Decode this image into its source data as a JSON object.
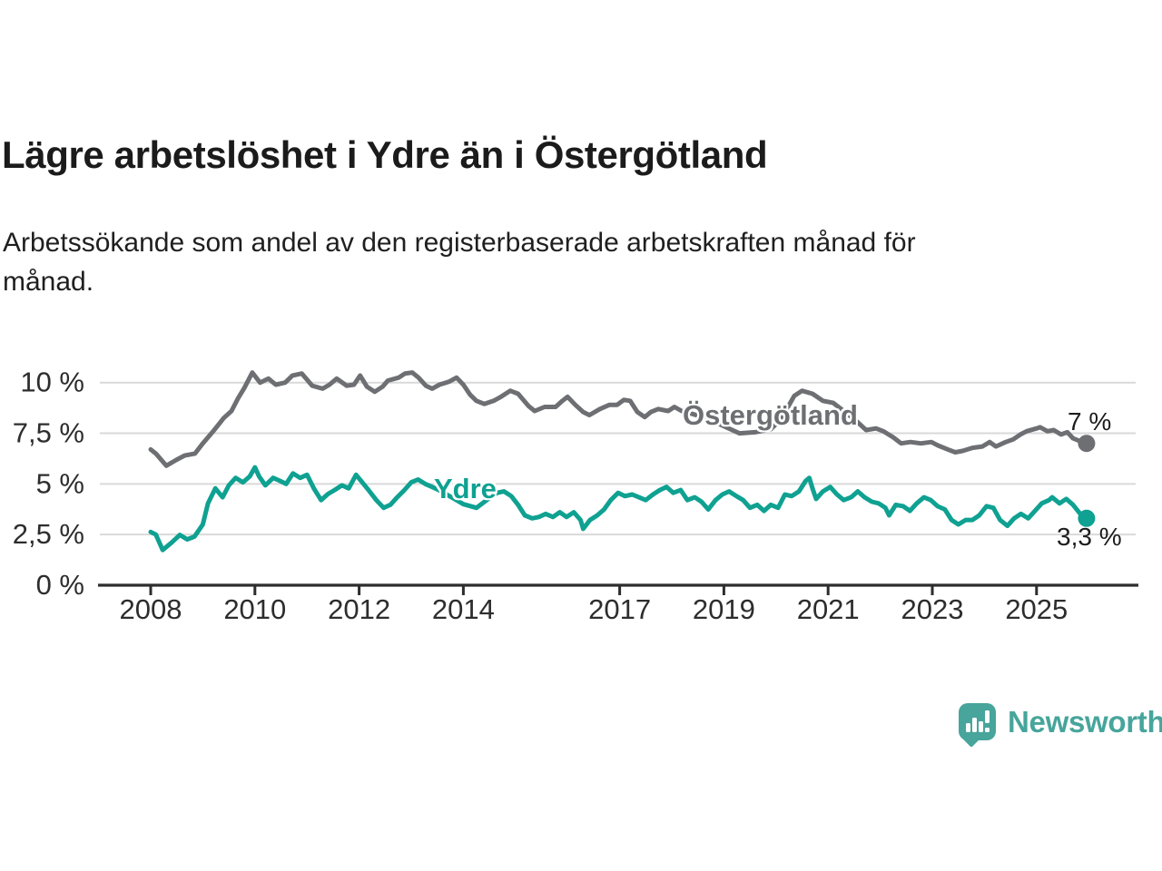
{
  "page": {
    "title": "Lägre arbetslöshet i Ydre än i Östergötland",
    "subtitle_line1": "Arbetssökande som andel av den registerbaserade arbetskraften månad för",
    "subtitle_line2": "månad."
  },
  "branding": {
    "name": "Newsworthy",
    "color": "#47a59b",
    "icon": "bar-chart-speech-bubble"
  },
  "chart_data": {
    "type": "line",
    "title": "Lägre arbetslöshet i Ydre än i Östergötland",
    "xlabel": "",
    "ylabel": "",
    "y_unit": "%",
    "grid": true,
    "xlim": [
      2007.85,
      2026.35
    ],
    "ylim": [
      0,
      11.2
    ],
    "x_ticks": [
      2008,
      2010,
      2012,
      2014,
      2017,
      2019,
      2021,
      2023,
      2025
    ],
    "y_ticks": [
      {
        "value": 10,
        "label": "10 %"
      },
      {
        "value": 7.5,
        "label": "7,5 %"
      },
      {
        "value": 5,
        "label": "5 %"
      },
      {
        "value": 2.5,
        "label": "2,5 %"
      },
      {
        "value": 0,
        "label": "0 %"
      }
    ],
    "colors": {
      "grid": "#d9d9d9",
      "axis": "#2d2d2d",
      "tick_text": "#2d2d2d"
    },
    "series": [
      {
        "name": "Östergötland",
        "color": "#6d6f73",
        "end_label": "7 %",
        "end_value": 7.0,
        "points": [
          [
            2008.0,
            6.7
          ],
          [
            2008.1,
            6.5
          ],
          [
            2008.3,
            5.9
          ],
          [
            2008.5,
            6.2
          ],
          [
            2008.65,
            6.4
          ],
          [
            2008.85,
            6.5
          ],
          [
            2009.0,
            7.0
          ],
          [
            2009.2,
            7.6
          ],
          [
            2009.4,
            8.25
          ],
          [
            2009.55,
            8.6
          ],
          [
            2009.67,
            9.2
          ],
          [
            2009.8,
            9.75
          ],
          [
            2009.95,
            10.5
          ],
          [
            2010.1,
            10.0
          ],
          [
            2010.26,
            10.2
          ],
          [
            2010.4,
            9.9
          ],
          [
            2010.58,
            10.0
          ],
          [
            2010.72,
            10.35
          ],
          [
            2010.9,
            10.45
          ],
          [
            2011.1,
            9.85
          ],
          [
            2011.3,
            9.7
          ],
          [
            2011.43,
            9.9
          ],
          [
            2011.57,
            10.2
          ],
          [
            2011.76,
            9.85
          ],
          [
            2011.9,
            9.9
          ],
          [
            2012.02,
            10.35
          ],
          [
            2012.15,
            9.8
          ],
          [
            2012.3,
            9.55
          ],
          [
            2012.45,
            9.8
          ],
          [
            2012.55,
            10.1
          ],
          [
            2012.76,
            10.25
          ],
          [
            2012.88,
            10.45
          ],
          [
            2013.02,
            10.5
          ],
          [
            2013.14,
            10.25
          ],
          [
            2013.28,
            9.85
          ],
          [
            2013.4,
            9.7
          ],
          [
            2013.54,
            9.9
          ],
          [
            2013.73,
            10.05
          ],
          [
            2013.87,
            10.25
          ],
          [
            2014.0,
            9.9
          ],
          [
            2014.13,
            9.4
          ],
          [
            2014.25,
            9.1
          ],
          [
            2014.4,
            8.95
          ],
          [
            2014.58,
            9.1
          ],
          [
            2014.72,
            9.3
          ],
          [
            2014.9,
            9.6
          ],
          [
            2015.05,
            9.45
          ],
          [
            2015.25,
            8.85
          ],
          [
            2015.37,
            8.6
          ],
          [
            2015.56,
            8.8
          ],
          [
            2015.77,
            8.8
          ],
          [
            2015.9,
            9.1
          ],
          [
            2016.0,
            9.3
          ],
          [
            2016.15,
            8.9
          ],
          [
            2016.3,
            8.55
          ],
          [
            2016.42,
            8.4
          ],
          [
            2016.62,
            8.7
          ],
          [
            2016.8,
            8.9
          ],
          [
            2016.95,
            8.9
          ],
          [
            2017.08,
            9.15
          ],
          [
            2017.2,
            9.1
          ],
          [
            2017.34,
            8.55
          ],
          [
            2017.48,
            8.3
          ],
          [
            2017.6,
            8.55
          ],
          [
            2017.74,
            8.7
          ],
          [
            2017.93,
            8.6
          ],
          [
            2018.05,
            8.8
          ],
          [
            2018.19,
            8.6
          ],
          [
            2018.4,
            8.45
          ],
          [
            2018.6,
            8.3
          ],
          [
            2018.8,
            8.1
          ],
          [
            2019.0,
            7.85
          ],
          [
            2019.3,
            7.5
          ],
          [
            2019.6,
            7.55
          ],
          [
            2019.9,
            7.7
          ],
          [
            2020.1,
            8.2
          ],
          [
            2020.35,
            9.35
          ],
          [
            2020.5,
            9.6
          ],
          [
            2020.7,
            9.45
          ],
          [
            2020.9,
            9.1
          ],
          [
            2021.1,
            9.0
          ],
          [
            2021.3,
            8.6
          ],
          [
            2021.5,
            8.2
          ],
          [
            2021.73,
            7.66
          ],
          [
            2021.92,
            7.74
          ],
          [
            2022.06,
            7.6
          ],
          [
            2022.25,
            7.3
          ],
          [
            2022.4,
            7.0
          ],
          [
            2022.58,
            7.07
          ],
          [
            2022.78,
            7.0
          ],
          [
            2022.98,
            7.07
          ],
          [
            2023.11,
            6.9
          ],
          [
            2023.3,
            6.7
          ],
          [
            2023.44,
            6.56
          ],
          [
            2023.58,
            6.63
          ],
          [
            2023.77,
            6.78
          ],
          [
            2023.96,
            6.85
          ],
          [
            2024.1,
            7.07
          ],
          [
            2024.22,
            6.85
          ],
          [
            2024.41,
            7.07
          ],
          [
            2024.55,
            7.2
          ],
          [
            2024.69,
            7.44
          ],
          [
            2024.81,
            7.6
          ],
          [
            2025.0,
            7.74
          ],
          [
            2025.07,
            7.8
          ],
          [
            2025.21,
            7.6
          ],
          [
            2025.33,
            7.66
          ],
          [
            2025.47,
            7.44
          ],
          [
            2025.59,
            7.55
          ],
          [
            2025.7,
            7.25
          ],
          [
            2025.8,
            7.15
          ],
          [
            2025.96,
            7.0
          ]
        ]
      },
      {
        "name": "Ydre",
        "color": "#0fa191",
        "end_label": "3,3 %",
        "end_value": 3.3,
        "points": [
          [
            2008.0,
            2.63
          ],
          [
            2008.1,
            2.5
          ],
          [
            2008.23,
            1.74
          ],
          [
            2008.4,
            2.1
          ],
          [
            2008.56,
            2.48
          ],
          [
            2008.7,
            2.26
          ],
          [
            2008.84,
            2.4
          ],
          [
            2009.0,
            3.0
          ],
          [
            2009.1,
            4.04
          ],
          [
            2009.24,
            4.78
          ],
          [
            2009.38,
            4.34
          ],
          [
            2009.5,
            4.93
          ],
          [
            2009.63,
            5.3
          ],
          [
            2009.77,
            5.08
          ],
          [
            2009.9,
            5.37
          ],
          [
            2010.0,
            5.82
          ],
          [
            2010.08,
            5.37
          ],
          [
            2010.2,
            4.93
          ],
          [
            2010.35,
            5.3
          ],
          [
            2010.48,
            5.15
          ],
          [
            2010.6,
            5.0
          ],
          [
            2010.73,
            5.52
          ],
          [
            2010.87,
            5.3
          ],
          [
            2011.0,
            5.45
          ],
          [
            2011.13,
            4.78
          ],
          [
            2011.27,
            4.2
          ],
          [
            2011.4,
            4.5
          ],
          [
            2011.53,
            4.7
          ],
          [
            2011.67,
            4.93
          ],
          [
            2011.8,
            4.78
          ],
          [
            2011.94,
            5.45
          ],
          [
            2012.06,
            5.08
          ],
          [
            2012.2,
            4.63
          ],
          [
            2012.33,
            4.2
          ],
          [
            2012.47,
            3.82
          ],
          [
            2012.6,
            3.97
          ],
          [
            2012.73,
            4.34
          ],
          [
            2012.87,
            4.7
          ],
          [
            2013.0,
            5.08
          ],
          [
            2013.13,
            5.22
          ],
          [
            2013.27,
            5.0
          ],
          [
            2013.4,
            4.85
          ],
          [
            2013.53,
            4.7
          ],
          [
            2013.8,
            4.3
          ],
          [
            2014.0,
            4.0
          ],
          [
            2014.25,
            3.82
          ],
          [
            2014.5,
            4.3
          ],
          [
            2014.65,
            4.56
          ],
          [
            2014.78,
            4.63
          ],
          [
            2014.92,
            4.4
          ],
          [
            2015.05,
            3.97
          ],
          [
            2015.18,
            3.45
          ],
          [
            2015.32,
            3.3
          ],
          [
            2015.45,
            3.37
          ],
          [
            2015.58,
            3.52
          ],
          [
            2015.72,
            3.37
          ],
          [
            2015.85,
            3.6
          ],
          [
            2015.98,
            3.37
          ],
          [
            2016.12,
            3.6
          ],
          [
            2016.25,
            3.22
          ],
          [
            2016.3,
            2.78
          ],
          [
            2016.43,
            3.22
          ],
          [
            2016.57,
            3.45
          ],
          [
            2016.7,
            3.74
          ],
          [
            2016.83,
            4.2
          ],
          [
            2016.97,
            4.56
          ],
          [
            2017.1,
            4.4
          ],
          [
            2017.24,
            4.48
          ],
          [
            2017.37,
            4.34
          ],
          [
            2017.5,
            4.2
          ],
          [
            2017.64,
            4.48
          ],
          [
            2017.77,
            4.7
          ],
          [
            2017.9,
            4.85
          ],
          [
            2018.03,
            4.56
          ],
          [
            2018.17,
            4.7
          ],
          [
            2018.3,
            4.2
          ],
          [
            2018.44,
            4.34
          ],
          [
            2018.57,
            4.12
          ],
          [
            2018.7,
            3.74
          ],
          [
            2018.84,
            4.2
          ],
          [
            2018.97,
            4.48
          ],
          [
            2019.1,
            4.63
          ],
          [
            2019.24,
            4.4
          ],
          [
            2019.37,
            4.2
          ],
          [
            2019.5,
            3.82
          ],
          [
            2019.64,
            3.97
          ],
          [
            2019.77,
            3.67
          ],
          [
            2019.9,
            3.97
          ],
          [
            2020.04,
            3.82
          ],
          [
            2020.17,
            4.48
          ],
          [
            2020.3,
            4.4
          ],
          [
            2020.44,
            4.63
          ],
          [
            2020.57,
            5.15
          ],
          [
            2020.64,
            5.3
          ],
          [
            2020.7,
            4.78
          ],
          [
            2020.77,
            4.26
          ],
          [
            2020.9,
            4.63
          ],
          [
            2021.04,
            4.85
          ],
          [
            2021.17,
            4.48
          ],
          [
            2021.3,
            4.2
          ],
          [
            2021.44,
            4.34
          ],
          [
            2021.57,
            4.63
          ],
          [
            2021.7,
            4.34
          ],
          [
            2021.84,
            4.12
          ],
          [
            2021.97,
            4.04
          ],
          [
            2022.1,
            3.82
          ],
          [
            2022.17,
            3.45
          ],
          [
            2022.3,
            3.97
          ],
          [
            2022.44,
            3.9
          ],
          [
            2022.57,
            3.67
          ],
          [
            2022.7,
            4.04
          ],
          [
            2022.84,
            4.34
          ],
          [
            2022.97,
            4.2
          ],
          [
            2023.1,
            3.9
          ],
          [
            2023.24,
            3.74
          ],
          [
            2023.37,
            3.22
          ],
          [
            2023.5,
            3.0
          ],
          [
            2023.64,
            3.22
          ],
          [
            2023.77,
            3.22
          ],
          [
            2023.9,
            3.45
          ],
          [
            2024.04,
            3.9
          ],
          [
            2024.17,
            3.82
          ],
          [
            2024.3,
            3.22
          ],
          [
            2024.44,
            2.93
          ],
          [
            2024.57,
            3.3
          ],
          [
            2024.7,
            3.52
          ],
          [
            2024.84,
            3.3
          ],
          [
            2024.97,
            3.67
          ],
          [
            2025.1,
            4.04
          ],
          [
            2025.24,
            4.2
          ],
          [
            2025.3,
            4.34
          ],
          [
            2025.44,
            4.04
          ],
          [
            2025.57,
            4.26
          ],
          [
            2025.7,
            3.97
          ],
          [
            2025.84,
            3.52
          ],
          [
            2025.9,
            3.37
          ],
          [
            2025.96,
            3.3
          ]
        ]
      }
    ]
  }
}
